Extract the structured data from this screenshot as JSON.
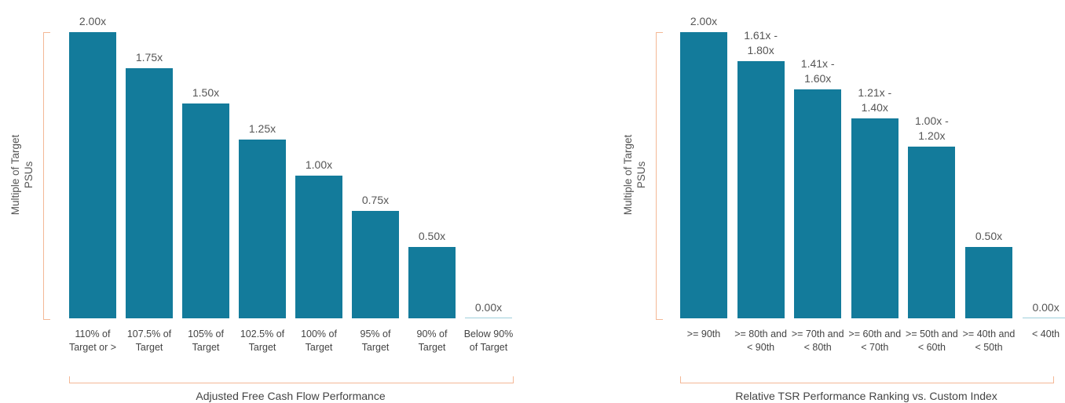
{
  "chart_data": [
    {
      "type": "bar",
      "y_label": "Multiple of Target PSUs",
      "x_label": "Adjusted Free Cash Flow Performance",
      "categories": [
        "110% of Target or >",
        "107.5% of Target",
        "105% of Target",
        "102.5% of Target",
        "100% of Target",
        "95% of Target",
        "90% of Target",
        "Below 90% of Target"
      ],
      "values": [
        2.0,
        1.75,
        1.5,
        1.25,
        1.0,
        0.75,
        0.5,
        0
      ],
      "value_labels": [
        "2.00x",
        "1.75x",
        "1.50x",
        "1.25x",
        "1.00x",
        "0.75x",
        "0.50x",
        "0.00x"
      ],
      "color": "#137b9b",
      "ylim": [
        0,
        2
      ]
    },
    {
      "type": "bar",
      "y_label": "Multiple of Target PSUs",
      "x_label": "Relative TSR Performance Ranking vs. Custom Index",
      "categories": [
        ">= 90th",
        ">= 80th and < 90th",
        ">= 70th and < 80th",
        ">= 60th and < 70th",
        ">= 50th and < 60th",
        ">= 40th and < 50th",
        "< 40th"
      ],
      "values": [
        2.0,
        1.8,
        1.6,
        1.4,
        1.2,
        0.5,
        0
      ],
      "value_labels": [
        "2.00x",
        "1.61x - 1.80x",
        "1.41x - 1.60x",
        "1.21x - 1.40x",
        "1.00x - 1.20x",
        "0.50x",
        "0.00x"
      ],
      "color": "#137b9b",
      "ylim": [
        0,
        2
      ]
    }
  ]
}
